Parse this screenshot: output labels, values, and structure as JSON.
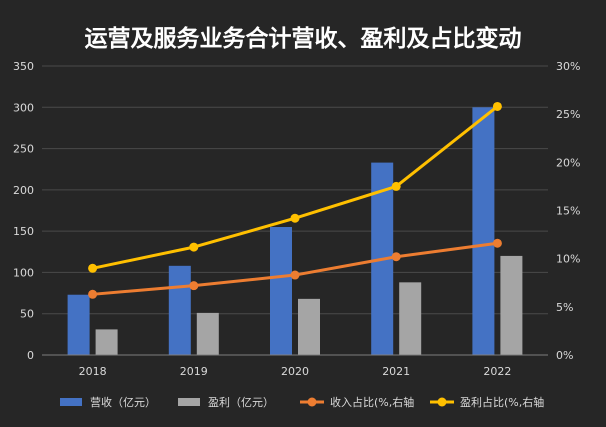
{
  "chart_data": {
    "type": "bar",
    "title": "运营及服务业务合计营收、盈利及占比变动",
    "categories": [
      "2018",
      "2019",
      "2020",
      "2021",
      "2022"
    ],
    "y_left": {
      "min": 0,
      "max": 350,
      "step": 50,
      "ticks": [
        "0",
        "50",
        "100",
        "150",
        "200",
        "250",
        "300",
        "350"
      ]
    },
    "y_right": {
      "min": 0,
      "max": 30,
      "step": 5,
      "ticks": [
        "0%",
        "5%",
        "10%",
        "15%",
        "20%",
        "25%",
        "30%"
      ]
    },
    "grid": true,
    "legend_position": "bottom",
    "series": [
      {
        "name": "营收（亿元）",
        "kind": "bar",
        "axis": "left",
        "color": "#4472C4",
        "values": [
          73,
          108,
          155,
          233,
          300
        ]
      },
      {
        "name": "盈利（亿元）",
        "kind": "bar",
        "axis": "left",
        "color": "#A5A5A5",
        "values": [
          31,
          51,
          68,
          88,
          120
        ]
      },
      {
        "name": "收入占比(%,右轴",
        "kind": "line",
        "axis": "right",
        "color": "#ED7D31",
        "values": [
          6.3,
          7.2,
          8.3,
          10.2,
          11.6
        ]
      },
      {
        "name": "盈利占比(%,右轴",
        "kind": "line",
        "axis": "right",
        "color": "#FFC000",
        "values": [
          9.0,
          11.2,
          14.2,
          17.5,
          25.8
        ]
      }
    ]
  }
}
